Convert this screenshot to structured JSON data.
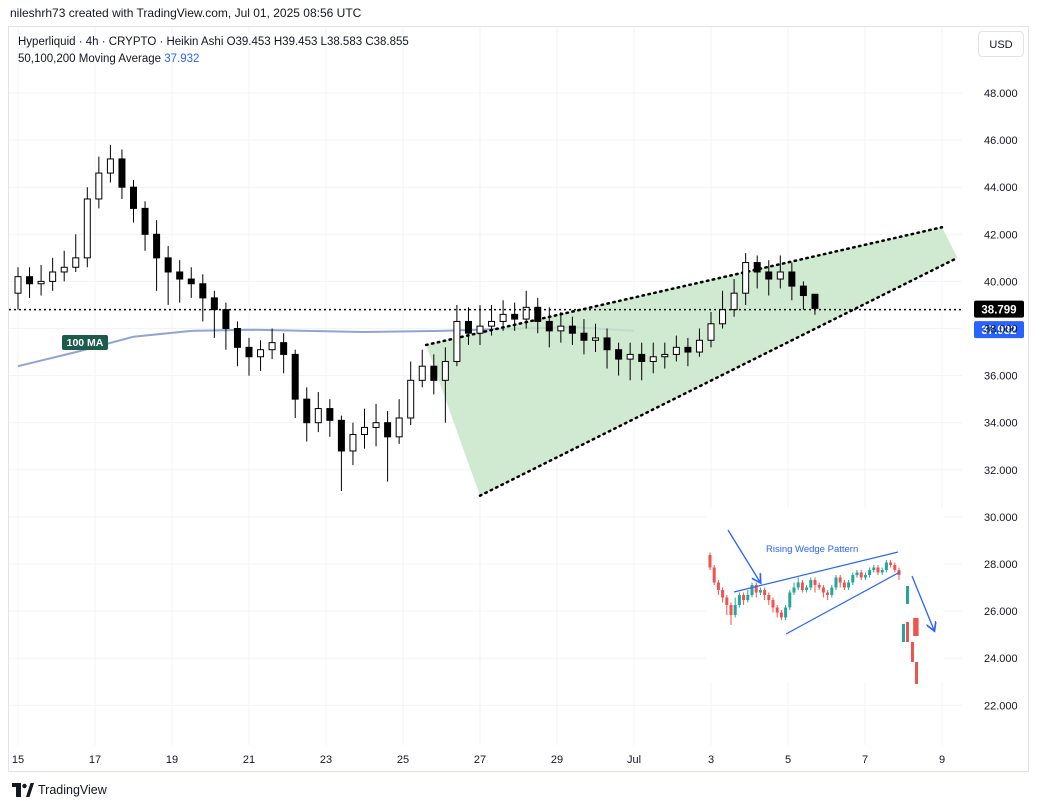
{
  "caption": "nileshrh73 created with TradingView.com, Jul 01, 2025 08:56 UTC",
  "legend": {
    "line1": "Hyperliquid · 4h · CRYPTO · Heikin Ashi  O39.453  H39.453  L38.583  C38.855",
    "ma_label": "50,100,200 Moving Average",
    "ma_value": "37.932"
  },
  "currency": "USD",
  "brand": "TradingView",
  "colors": {
    "candle": "#000000",
    "wedge_fill": "#c8e6c9",
    "ma_line": "#90a4d4",
    "price_badge": "#000000",
    "ma_badge": "#2962ff",
    "ma_tag": "#1e5b4d",
    "inset_up": "#26a69a",
    "inset_down": "#ef5350",
    "inset_line": "#2962ff"
  },
  "chart_data": {
    "type": "candlestick",
    "style": "Heikin Ashi",
    "symbol": "Hyperliquid",
    "timeframe": "4h",
    "x_ticks": [
      "15",
      "17",
      "19",
      "21",
      "23",
      "25",
      "27",
      "29",
      "Jul",
      "3",
      "5",
      "7",
      "9"
    ],
    "y_ticks": [
      "48.000",
      "46.000",
      "44.000",
      "42.000",
      "40.000",
      "38.000",
      "36.000",
      "34.000",
      "32.000",
      "30.000",
      "28.000",
      "26.000",
      "24.000",
      "22.000"
    ],
    "ylim": [
      21.2,
      49.8
    ],
    "x_range": [
      15,
      40
    ],
    "grid": true,
    "current_price": "38.799",
    "current_price_value": 38.799,
    "ma_badge": "37.932",
    "ma_badge_value": 37.932,
    "ma_tag": "100 MA",
    "ma_line": [
      [
        15,
        36.4
      ],
      [
        16.5,
        37.0
      ],
      [
        18,
        37.65
      ],
      [
        19.5,
        37.9
      ],
      [
        21,
        37.95
      ],
      [
        22.5,
        37.9
      ],
      [
        24,
        37.85
      ],
      [
        26,
        37.9
      ],
      [
        28,
        38.0
      ],
      [
        29.5,
        38.05
      ],
      [
        31,
        37.9
      ]
    ],
    "candles": [
      [
        15.0,
        39.5,
        40.2,
        40.6,
        38.8
      ],
      [
        15.3,
        40.2,
        39.9,
        40.6,
        39.3
      ],
      [
        15.6,
        39.9,
        40.0,
        40.7,
        39.4
      ],
      [
        15.9,
        40.0,
        40.4,
        41.0,
        39.6
      ],
      [
        16.2,
        40.4,
        40.6,
        41.3,
        40.0
      ],
      [
        16.5,
        40.6,
        41.0,
        42.0,
        40.4
      ],
      [
        16.8,
        41.0,
        43.5,
        44.0,
        40.6
      ],
      [
        17.1,
        43.5,
        44.6,
        45.3,
        43.1
      ],
      [
        17.4,
        44.6,
        45.2,
        45.8,
        44.2
      ],
      [
        17.7,
        45.2,
        44.0,
        45.6,
        43.5
      ],
      [
        18.0,
        44.0,
        43.1,
        44.3,
        42.5
      ],
      [
        18.3,
        43.1,
        42.0,
        43.4,
        41.3
      ],
      [
        18.6,
        42.0,
        41.0,
        42.6,
        39.6
      ],
      [
        18.9,
        41.0,
        40.4,
        41.5,
        39.0
      ],
      [
        19.2,
        40.4,
        40.1,
        40.9,
        39.1
      ],
      [
        19.5,
        40.1,
        39.9,
        40.6,
        39.3
      ],
      [
        19.8,
        39.9,
        39.3,
        40.3,
        38.3
      ],
      [
        20.1,
        39.3,
        38.8,
        39.6,
        37.6
      ],
      [
        20.4,
        38.8,
        38.0,
        39.1,
        37.1
      ],
      [
        20.7,
        38.0,
        37.2,
        38.3,
        36.4
      ],
      [
        21.0,
        37.2,
        36.8,
        37.6,
        36.0
      ],
      [
        21.3,
        36.8,
        37.1,
        37.5,
        36.2
      ],
      [
        21.6,
        37.1,
        37.4,
        38.0,
        36.7
      ],
      [
        21.9,
        37.4,
        36.9,
        37.8,
        36.1
      ],
      [
        22.2,
        36.9,
        35.0,
        37.1,
        34.2
      ],
      [
        22.5,
        35.0,
        34.0,
        35.5,
        33.2
      ],
      [
        22.8,
        34.0,
        34.6,
        35.3,
        33.6
      ],
      [
        23.1,
        34.6,
        34.1,
        35.0,
        33.4
      ],
      [
        23.4,
        34.1,
        32.8,
        34.3,
        31.1
      ],
      [
        23.7,
        32.8,
        33.5,
        34.0,
        32.2
      ],
      [
        24.0,
        33.5,
        33.8,
        34.6,
        32.9
      ],
      [
        24.3,
        33.8,
        34.0,
        34.8,
        33.0
      ],
      [
        24.6,
        34.0,
        33.4,
        34.5,
        31.5
      ],
      [
        24.9,
        33.4,
        34.2,
        35.0,
        33.1
      ],
      [
        25.2,
        34.2,
        35.8,
        36.6,
        33.9
      ],
      [
        25.5,
        35.8,
        36.4,
        37.1,
        35.5
      ],
      [
        25.8,
        36.4,
        35.8,
        36.9,
        35.2
      ],
      [
        26.1,
        35.8,
        36.6,
        37.2,
        34.0
      ],
      [
        26.4,
        36.6,
        38.3,
        39.0,
        36.4
      ],
      [
        26.7,
        38.3,
        37.8,
        38.9,
        37.3
      ],
      [
        27.0,
        37.8,
        38.1,
        39.0,
        37.3
      ],
      [
        27.3,
        38.1,
        38.3,
        39.0,
        37.7
      ],
      [
        27.6,
        38.3,
        38.6,
        39.2,
        37.9
      ],
      [
        27.9,
        38.6,
        38.4,
        39.1,
        37.9
      ],
      [
        28.2,
        38.4,
        38.9,
        39.6,
        38.0
      ],
      [
        28.5,
        38.9,
        38.3,
        39.3,
        37.8
      ],
      [
        28.8,
        38.3,
        37.9,
        38.9,
        37.2
      ],
      [
        29.1,
        37.9,
        38.1,
        38.7,
        37.4
      ],
      [
        29.4,
        38.1,
        37.8,
        38.5,
        37.3
      ],
      [
        29.7,
        37.8,
        37.5,
        38.4,
        36.9
      ],
      [
        30.0,
        37.5,
        37.6,
        38.2,
        37.0
      ],
      [
        30.3,
        37.6,
        37.1,
        38.0,
        36.3
      ],
      [
        30.6,
        37.1,
        36.7,
        37.4,
        36.0
      ],
      [
        30.9,
        36.7,
        36.9,
        37.4,
        35.8
      ],
      [
        31.2,
        36.9,
        36.6,
        37.4,
        35.8
      ],
      [
        31.5,
        36.6,
        36.8,
        37.4,
        36.1
      ],
      [
        31.8,
        36.8,
        36.9,
        37.4,
        36.3
      ],
      [
        32.1,
        36.9,
        37.2,
        37.7,
        36.6
      ],
      [
        32.4,
        37.2,
        37.0,
        37.6,
        36.4
      ],
      [
        32.7,
        37.0,
        37.5,
        38.0,
        36.8
      ],
      [
        33.0,
        37.5,
        38.2,
        38.7,
        37.2
      ],
      [
        33.3,
        38.2,
        38.8,
        39.6,
        38.0
      ],
      [
        33.6,
        38.8,
        39.5,
        40.1,
        38.5
      ],
      [
        33.9,
        39.5,
        40.8,
        41.2,
        39.0
      ],
      [
        34.2,
        40.8,
        40.4,
        41.1,
        39.7
      ],
      [
        34.5,
        40.4,
        40.1,
        40.9,
        39.4
      ],
      [
        34.8,
        40.1,
        40.4,
        41.1,
        39.7
      ],
      [
        35.1,
        40.4,
        39.8,
        40.8,
        39.2
      ],
      [
        35.4,
        39.8,
        39.4,
        40.0,
        38.8
      ],
      [
        35.7,
        39.453,
        38.855,
        39.453,
        38.583
      ]
    ],
    "annotations": [
      {
        "type": "rising-wedge",
        "upper": [
          [
            25.6,
            37.3
          ],
          [
            39.0,
            42.3
          ]
        ],
        "lower": [
          [
            27.0,
            30.9
          ],
          [
            39.4,
            41.0
          ]
        ]
      }
    ],
    "inset": {
      "title": "Rising Wedge Pattern",
      "candles": [
        [
          0,
          60,
          50,
          62,
          48
        ],
        [
          1,
          50,
          38,
          52,
          36
        ],
        [
          2,
          38,
          32,
          40,
          28
        ],
        [
          3,
          32,
          26,
          34,
          22
        ],
        [
          4,
          26,
          20,
          28,
          12
        ],
        [
          5,
          20,
          12,
          22,
          4
        ],
        [
          6,
          12,
          20,
          26,
          10
        ],
        [
          7,
          20,
          28,
          30,
          18
        ],
        [
          8,
          28,
          24,
          30,
          20
        ],
        [
          9,
          24,
          28,
          32,
          22
        ],
        [
          10,
          28,
          36,
          38,
          26
        ],
        [
          11,
          36,
          30,
          38,
          26
        ],
        [
          12,
          30,
          32,
          34,
          28
        ],
        [
          13,
          32,
          28,
          34,
          24
        ],
        [
          14,
          28,
          24,
          30,
          20
        ],
        [
          15,
          24,
          18,
          26,
          14
        ],
        [
          16,
          18,
          14,
          20,
          10
        ],
        [
          17,
          14,
          10,
          16,
          8
        ],
        [
          18,
          10,
          18,
          20,
          8
        ],
        [
          19,
          18,
          30,
          32,
          16
        ],
        [
          20,
          30,
          34,
          38,
          28
        ],
        [
          21,
          34,
          38,
          42,
          32
        ],
        [
          22,
          38,
          32,
          40,
          30
        ],
        [
          23,
          32,
          34,
          36,
          30
        ],
        [
          24,
          34,
          40,
          42,
          32
        ],
        [
          25,
          40,
          36,
          42,
          30
        ],
        [
          26,
          36,
          34,
          38,
          32
        ],
        [
          27,
          34,
          30,
          36,
          26
        ],
        [
          28,
          30,
          28,
          32,
          24
        ],
        [
          29,
          28,
          34,
          36,
          26
        ],
        [
          30,
          34,
          42,
          44,
          32
        ],
        [
          31,
          42,
          38,
          44,
          34
        ],
        [
          32,
          38,
          34,
          40,
          32
        ],
        [
          33,
          34,
          38,
          40,
          32
        ],
        [
          34,
          38,
          44,
          46,
          36
        ],
        [
          35,
          44,
          46,
          48,
          42
        ],
        [
          36,
          46,
          42,
          48,
          40
        ],
        [
          37,
          42,
          44,
          46,
          40
        ],
        [
          38,
          44,
          48,
          50,
          42
        ],
        [
          39,
          48,
          50,
          52,
          46
        ],
        [
          40,
          50,
          46,
          52,
          44
        ],
        [
          41,
          46,
          48,
          50,
          44
        ],
        [
          42,
          48,
          54,
          56,
          46
        ],
        [
          43,
          54,
          52,
          56,
          50
        ],
        [
          44,
          52,
          48,
          54,
          46
        ],
        [
          45,
          48,
          44,
          50,
          40
        ]
      ],
      "lines": [
        {
          "kind": "wedge-upper",
          "points": [
            [
              12,
              33
            ],
            [
              84,
              16
            ]
          ]
        },
        {
          "kind": "wedge-lower",
          "points": [
            [
              28,
              100
            ],
            [
              82,
              48
            ]
          ]
        },
        {
          "kind": "arrow-down",
          "points": [
            [
              14,
              3
            ],
            [
              32,
              42
            ]
          ]
        },
        {
          "kind": "arrow-down",
          "points": [
            [
              86,
              44
            ],
            [
              96,
              92
            ]
          ]
        }
      ],
      "tail_candles": [
        [
          82,
          74,
          84,
          70,
          96
        ],
        [
          88,
          82,
          90,
          80,
          128
        ],
        [
          90,
          86,
          92,
          84,
          128
        ]
      ]
    }
  }
}
